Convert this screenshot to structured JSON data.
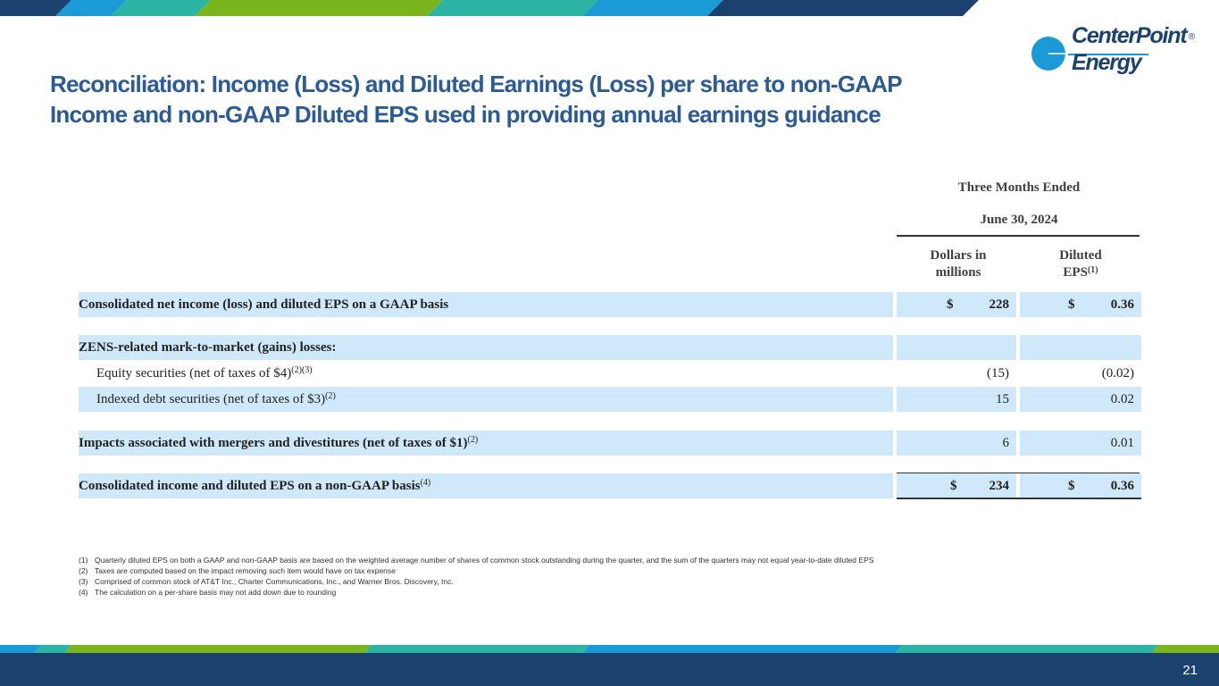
{
  "colors": {
    "title": "#2a5b96",
    "band_navy": "#1b426e",
    "band_blue": "#1a9ad6",
    "band_teal": "#2bb3a3",
    "band_green": "#7ab51d",
    "row_shade": "#cfe9fb"
  },
  "header": {
    "title_line1": "Reconciliation: Income (Loss) and Diluted Earnings (Loss) per share to non-GAAP",
    "title_line2": "Income and non-GAAP Diluted EPS used in providing annual earnings guidance",
    "logo": {
      "name_line1": "CenterPoint",
      "name_line2": "Energy",
      "registered": "®",
      "icon": "centerpoint-globe-icon"
    }
  },
  "table": {
    "period_label": "Three Months Ended",
    "period_date": "June 30, 2024",
    "col_dollars_line1": "Dollars in",
    "col_dollars_line2": "millions",
    "col_eps": "Diluted EPS",
    "col_eps_note": "(1)",
    "rows": [
      {
        "label": "Consolidated net income (loss) and diluted EPS on a GAAP basis",
        "note": "",
        "dollars_currency": "$",
        "dollars": "228",
        "eps_currency": "$",
        "eps": "0.36"
      },
      {
        "label": "ZENS-related mark-to-market (gains) losses:",
        "note": "",
        "dollars_currency": "",
        "dollars": "",
        "eps_currency": "",
        "eps": ""
      },
      {
        "label": "Equity securities (net of taxes of $4)",
        "note": "(2)(3)",
        "dollars_currency": "",
        "dollars": "(15)",
        "eps_currency": "",
        "eps": "(0.02)"
      },
      {
        "label": "Indexed debt securities (net of taxes of $3)",
        "note": "(2)",
        "dollars_currency": "",
        "dollars": "15",
        "eps_currency": "",
        "eps": "0.02"
      },
      {
        "label": "Impacts associated with mergers and divestitures (net of taxes of $1)",
        "note": "(2)",
        "dollars_currency": "",
        "dollars": "6",
        "eps_currency": "",
        "eps": "0.01"
      },
      {
        "label": "Consolidated income and diluted EPS on a non-GAAP basis",
        "note": "(4)",
        "dollars_currency": "$",
        "dollars": "234",
        "eps_currency": "$",
        "eps": "0.36"
      }
    ]
  },
  "footnotes": [
    {
      "mark": "(1)",
      "text": "Quarterly diluted EPS on both a GAAP and non-GAAP basis are based on the weighted average number of shares of common stock outstanding during the quarter, and the sum of the quarters may not equal year-to-date diluted EPS"
    },
    {
      "mark": "(2)",
      "text": "Taxes are computed based on the impact removing such item would have on tax expense"
    },
    {
      "mark": "(3)",
      "text": "Comprised of common stock of AT&T Inc., Charter Communications, Inc., and Warner Bros. Discovery, Inc."
    },
    {
      "mark": "(4)",
      "text": "The calculation on a per-share basis may not add down due to rounding"
    }
  ],
  "footer": {
    "page_number": "21"
  }
}
